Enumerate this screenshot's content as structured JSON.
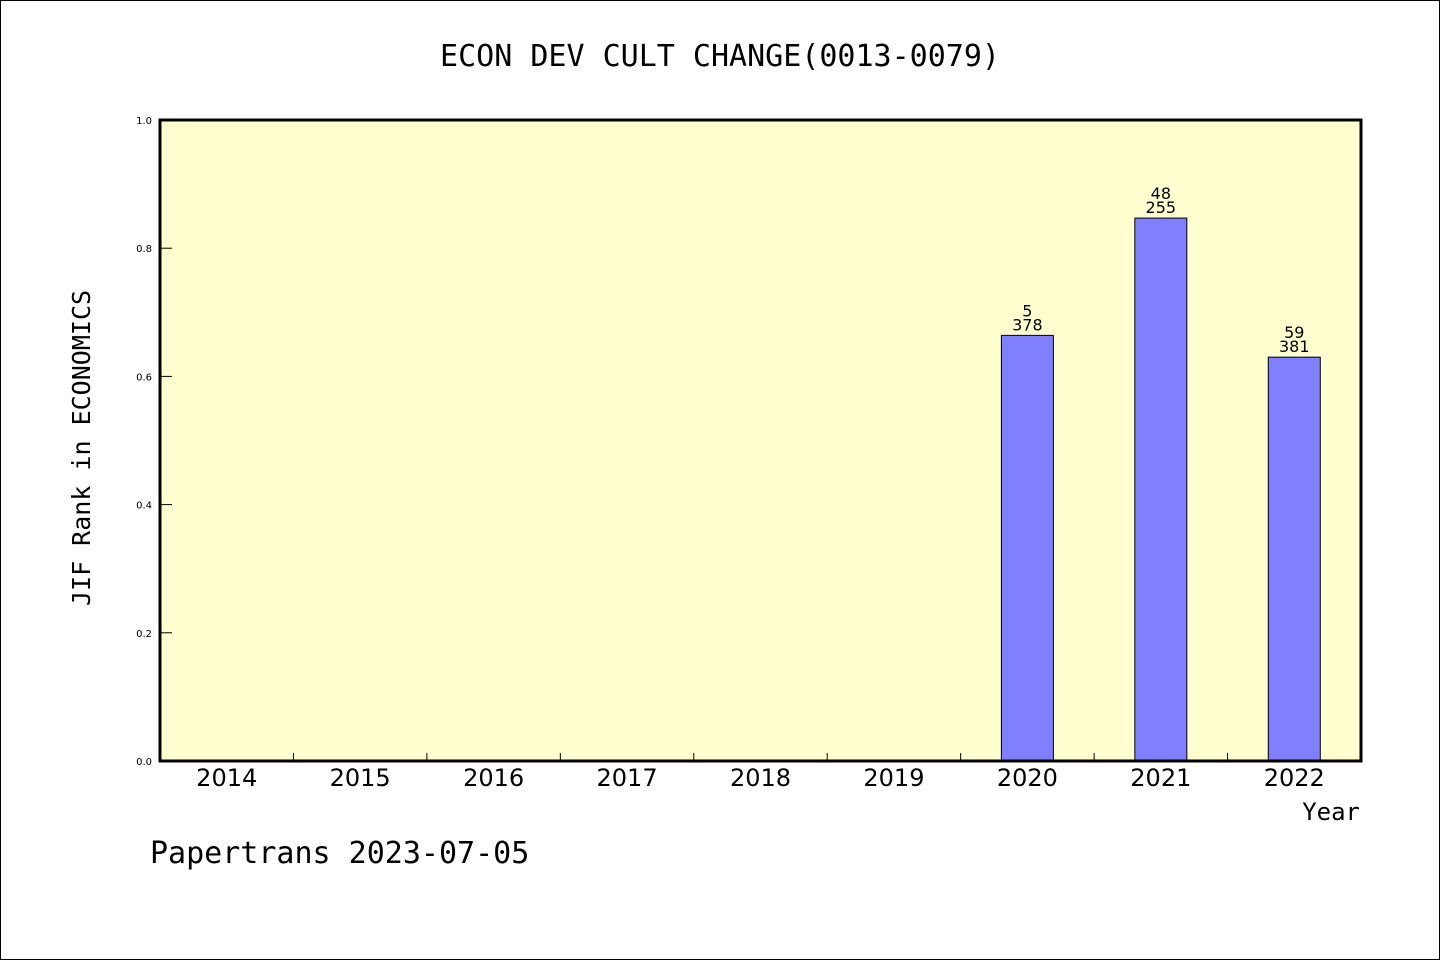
{
  "chart_data": {
    "type": "bar",
    "title": "ECON DEV CULT CHANGE(0013-0079)",
    "xlabel": "Year",
    "ylabel": "JIF Rank in ECONOMICS",
    "categories": [
      "2014",
      "2015",
      "2016",
      "2017",
      "2018",
      "2019",
      "2020",
      "2021",
      "2022"
    ],
    "values": [
      null,
      null,
      null,
      null,
      null,
      null,
      0.664,
      0.847,
      0.63
    ],
    "data_labels": [
      null,
      null,
      null,
      null,
      null,
      null,
      {
        "rank": "5",
        "total": "378"
      },
      {
        "rank": "48",
        "total": "255"
      },
      {
        "rank": "59",
        "total": "381"
      }
    ],
    "ylim": [
      0,
      1.0
    ],
    "yticks": [
      "0.0",
      "0.2",
      "0.4",
      "0.6",
      "0.8",
      "1.0"
    ],
    "grid": false,
    "colors": {
      "plot_background": "#ffffd0",
      "bar_fill": "#8080ff",
      "bar_stroke": "#000000"
    }
  },
  "footer": "Papertrans 2023-07-05"
}
